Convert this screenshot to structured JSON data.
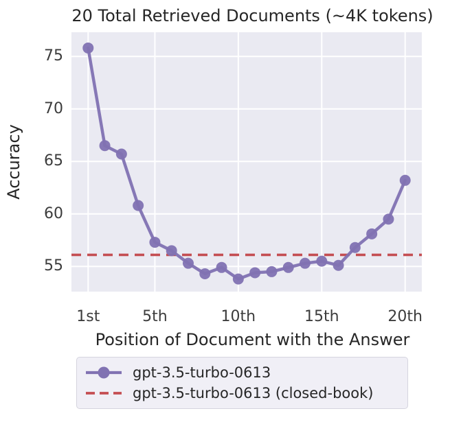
{
  "chart_data": {
    "type": "line",
    "title": "20 Total Retrieved Documents (~4K tokens)",
    "xlabel": "Position of Document with the Answer",
    "ylabel": "Accuracy",
    "grid": true,
    "legend_position": "below-chart",
    "xlim": [
      0,
      21
    ],
    "ylim": [
      52.6,
      77.3
    ],
    "x_ticks": [
      {
        "value": 1,
        "label": "1st"
      },
      {
        "value": 5,
        "label": "5th"
      },
      {
        "value": 10,
        "label": "10th"
      },
      {
        "value": 15,
        "label": "15th"
      },
      {
        "value": 20,
        "label": "20th"
      }
    ],
    "y_ticks": [
      55,
      60,
      65,
      70,
      75
    ],
    "series": [
      {
        "name": "gpt-3.5-turbo-0613",
        "type": "line",
        "marker": "circle",
        "color": "#8172b2",
        "x": [
          1,
          2,
          3,
          4,
          5,
          6,
          7,
          8,
          9,
          10,
          11,
          12,
          13,
          14,
          15,
          16,
          17,
          18,
          19,
          20
        ],
        "y": [
          75.8,
          66.5,
          65.7,
          60.8,
          57.3,
          56.5,
          55.3,
          54.3,
          54.9,
          53.8,
          54.4,
          54.5,
          54.9,
          55.3,
          55.5,
          55.1,
          56.8,
          58.1,
          59.5,
          63.2
        ]
      },
      {
        "name": "gpt-3.5-turbo-0613 (closed-book)",
        "type": "hline",
        "style": "dashed",
        "color": "#c44e52",
        "value": 56.1
      }
    ]
  },
  "colors": {
    "plot_background": "#eaeaf2",
    "gridline": "#ffffff",
    "title_text": "#262626",
    "tick_text": "#3c3c3c",
    "legend_background": "#f0eff6",
    "legend_border": "#d5d4de"
  }
}
